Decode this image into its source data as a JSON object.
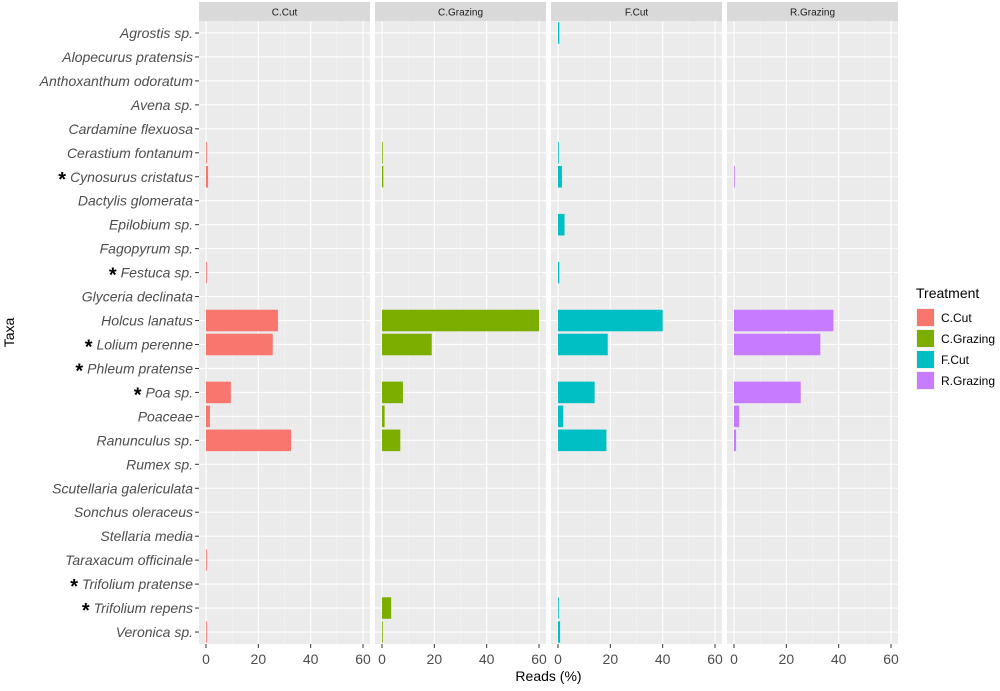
{
  "chart_data": {
    "type": "bar",
    "orientation": "horizontal",
    "xlabel": "Reads (%)",
    "ylabel": "Taxa",
    "xlim": [
      0,
      60
    ],
    "xticks": [
      0,
      20,
      40,
      60
    ],
    "legend_title": "Treatment",
    "legend_position": "right",
    "grid": true,
    "taxa": [
      {
        "name": "Agrostis sp.",
        "star": false
      },
      {
        "name": "Alopecurus pratensis",
        "star": false
      },
      {
        "name": "Anthoxanthum odoratum",
        "star": false
      },
      {
        "name": "Avena sp.",
        "star": false
      },
      {
        "name": "Cardamine flexuosa",
        "star": false
      },
      {
        "name": "Cerastium fontanum",
        "star": false
      },
      {
        "name": "Cynosurus cristatus",
        "star": true
      },
      {
        "name": "Dactylis glomerata",
        "star": false
      },
      {
        "name": "Epilobium sp.",
        "star": false
      },
      {
        "name": "Fagopyrum sp.",
        "star": false
      },
      {
        "name": "Festuca sp.",
        "star": true
      },
      {
        "name": "Glyceria declinata",
        "star": false
      },
      {
        "name": "Holcus lanatus",
        "star": false
      },
      {
        "name": "Lolium perenne",
        "star": true
      },
      {
        "name": "Phleum pratense",
        "star": true
      },
      {
        "name": "Poa sp.",
        "star": true
      },
      {
        "name": "Poaceae",
        "star": false
      },
      {
        "name": "Ranunculus sp.",
        "star": false
      },
      {
        "name": "Rumex sp.",
        "star": false
      },
      {
        "name": "Scutellaria galericulata",
        "star": false
      },
      {
        "name": "Sonchus oleraceus",
        "star": false
      },
      {
        "name": "Stellaria media",
        "star": false
      },
      {
        "name": "Taraxacum officinale",
        "star": false
      },
      {
        "name": "Trifolium pratense",
        "star": true
      },
      {
        "name": "Trifolium repens",
        "star": true
      },
      {
        "name": "Veronica sp.",
        "star": false
      }
    ],
    "star_symbol": "*",
    "series": [
      {
        "name": "C.Cut",
        "color": "#F8766D",
        "values": [
          0,
          0,
          0,
          0,
          0,
          0.3,
          0.8,
          0,
          0,
          0,
          0.3,
          0,
          27.5,
          25.5,
          0,
          9.5,
          1.5,
          32.5,
          0,
          0,
          0,
          0,
          0.3,
          0,
          0,
          0.3
        ]
      },
      {
        "name": "C.Grazing",
        "color": "#7CAE00",
        "values": [
          0,
          0,
          0,
          0,
          0,
          0.3,
          0.5,
          0,
          0,
          0,
          0,
          0,
          60,
          19,
          0,
          8,
          1,
          7,
          0,
          0,
          0,
          0,
          0,
          0,
          3.5,
          0.3
        ]
      },
      {
        "name": "F.Cut",
        "color": "#00BFC4",
        "values": [
          0.5,
          0,
          0,
          0,
          0,
          0.3,
          1.5,
          0,
          2.5,
          0,
          0.5,
          0,
          40,
          19,
          0,
          14,
          2,
          18.5,
          0,
          0,
          0,
          0,
          0,
          0,
          0.3,
          0.8
        ]
      },
      {
        "name": "R.Grazing",
        "color": "#C77CFF",
        "values": [
          0,
          0,
          0,
          0,
          0,
          0,
          0.3,
          0,
          0,
          0,
          0,
          0,
          38,
          33,
          0,
          25.5,
          2,
          0.8,
          0,
          0,
          0,
          0,
          0,
          0,
          0,
          0
        ]
      }
    ]
  }
}
